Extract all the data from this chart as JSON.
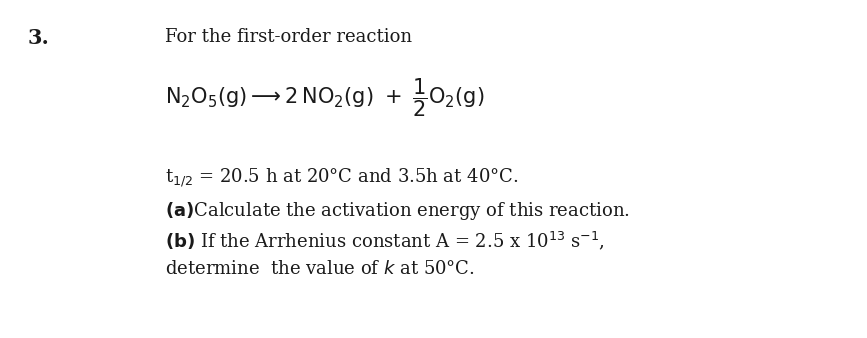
{
  "background_color": "#ffffff",
  "number_text": "3.",
  "number_fontsize": 15,
  "number_fontweight": "bold",
  "line1_text": "For the first-order reaction",
  "line1_fontsize": 13,
  "equation_fontsize": 15,
  "t_line_fontsize": 13,
  "part_fontsize": 13,
  "text_color": "#1a1a1a",
  "font_family": "serif"
}
